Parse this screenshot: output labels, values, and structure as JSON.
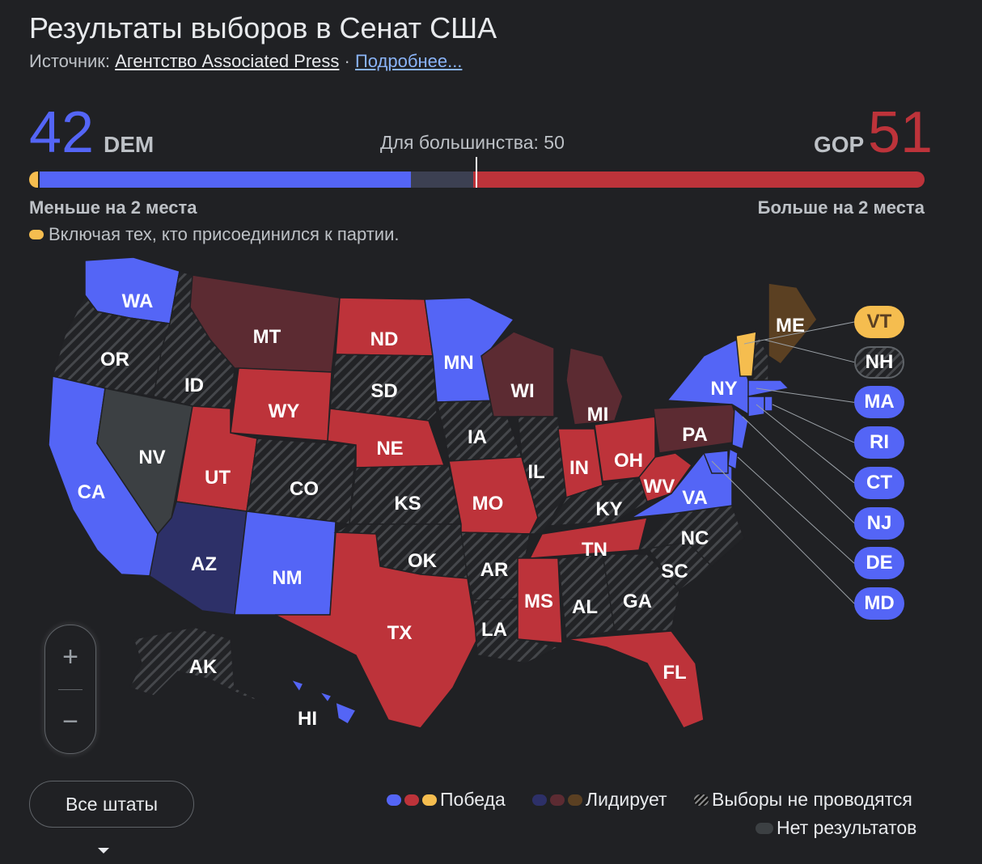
{
  "header": {
    "title": "Результаты выборов в Сенат США",
    "source_prefix": "Источник: ",
    "source_link": "Агентство Associated Press",
    "separator": " · ",
    "more_link": "Подробнее..."
  },
  "tally": {
    "dem_seats": "42",
    "dem_label": "DEM",
    "gop_seats": "51",
    "gop_label": "GOP",
    "majority": "Для большинства: 50",
    "dem_note": "Меньше на 2 места",
    "gop_note": "Больше на 2 места",
    "ind_note": "Включая тех, кто присоединился к партии.",
    "bar": {
      "ind": 2,
      "dem": 42,
      "undecided": 7,
      "gop": 51
    }
  },
  "colors": {
    "dem_win": "#5465f6",
    "gop_win": "#bd333a",
    "ind_win": "#f5bd4f",
    "dem_lead": "#2d3068",
    "gop_lead": "#5c2b32",
    "ind_lead": "#5b4022",
    "no_results": "#3c4043",
    "no_election": "#2a2b2e"
  },
  "states": [
    {
      "code": "WA",
      "status": "dem_win"
    },
    {
      "code": "OR",
      "status": "no_election"
    },
    {
      "code": "CA",
      "status": "dem_win"
    },
    {
      "code": "NV",
      "status": "no_results"
    },
    {
      "code": "ID",
      "status": "no_election"
    },
    {
      "code": "MT",
      "status": "gop_lead"
    },
    {
      "code": "WY",
      "status": "gop_win"
    },
    {
      "code": "UT",
      "status": "gop_win"
    },
    {
      "code": "AZ",
      "status": "dem_lead"
    },
    {
      "code": "CO",
      "status": "no_election"
    },
    {
      "code": "NM",
      "status": "dem_win"
    },
    {
      "code": "ND",
      "status": "gop_win"
    },
    {
      "code": "SD",
      "status": "no_election"
    },
    {
      "code": "NE",
      "status": "gop_win"
    },
    {
      "code": "KS",
      "status": "no_election"
    },
    {
      "code": "OK",
      "status": "no_election"
    },
    {
      "code": "TX",
      "status": "gop_win"
    },
    {
      "code": "MN",
      "status": "dem_win"
    },
    {
      "code": "IA",
      "status": "no_election"
    },
    {
      "code": "MO",
      "status": "gop_win"
    },
    {
      "code": "AR",
      "status": "no_election"
    },
    {
      "code": "LA",
      "status": "no_election"
    },
    {
      "code": "WI",
      "status": "gop_lead"
    },
    {
      "code": "IL",
      "status": "no_election"
    },
    {
      "code": "MI",
      "status": "gop_lead"
    },
    {
      "code": "IN",
      "status": "gop_win"
    },
    {
      "code": "OH",
      "status": "gop_win"
    },
    {
      "code": "KY",
      "status": "no_election"
    },
    {
      "code": "TN",
      "status": "gop_win"
    },
    {
      "code": "MS",
      "status": "gop_win"
    },
    {
      "code": "AL",
      "status": "no_election"
    },
    {
      "code": "GA",
      "status": "no_election"
    },
    {
      "code": "FL",
      "status": "gop_win"
    },
    {
      "code": "SC",
      "status": "no_election"
    },
    {
      "code": "NC",
      "status": "no_election"
    },
    {
      "code": "WV",
      "status": "gop_win"
    },
    {
      "code": "VA",
      "status": "dem_win"
    },
    {
      "code": "PA",
      "status": "gop_lead"
    },
    {
      "code": "NY",
      "status": "dem_win"
    },
    {
      "code": "ME",
      "status": "ind_lead"
    },
    {
      "code": "AK",
      "status": "no_election"
    },
    {
      "code": "HI",
      "status": "dem_win"
    }
  ],
  "small_states": [
    {
      "code": "VT",
      "status": "ind_win"
    },
    {
      "code": "NH",
      "status": "no_election"
    },
    {
      "code": "MA",
      "status": "dem_win"
    },
    {
      "code": "RI",
      "status": "dem_win"
    },
    {
      "code": "CT",
      "status": "dem_win"
    },
    {
      "code": "NJ",
      "status": "dem_win"
    },
    {
      "code": "DE",
      "status": "dem_win"
    },
    {
      "code": "MD",
      "status": "dem_win"
    }
  ],
  "controls": {
    "zoom_in": "+",
    "zoom_out": "−",
    "all_states": "Все штаты"
  },
  "legend": {
    "win": "Победа",
    "lead": "Лидирует",
    "no_election": "Выборы не проводятся",
    "no_results": "Нет результатов"
  }
}
